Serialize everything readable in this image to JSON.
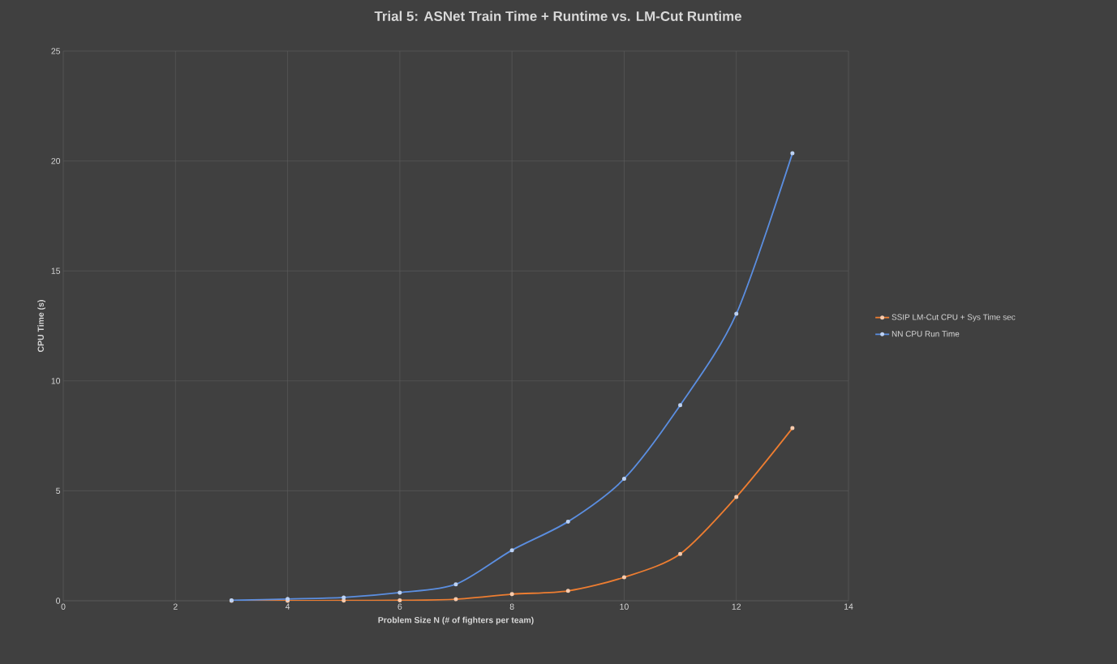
{
  "chart_data": {
    "type": "line",
    "title": "Trial 5: ASNet Train Time + Runtime vs. LM-Cut Runtime",
    "xlabel": "Problem Size N (# of fighters per team)",
    "ylabel": "CPU Time (s)",
    "x": [
      3,
      4,
      5,
      6,
      7,
      8,
      9,
      10,
      11,
      12,
      13
    ],
    "series": [
      {
        "name": "SSIP LM-Cut CPU + Sys Time sec",
        "color": "#ed7d31",
        "values": [
          0,
          0,
          0.01,
          0.02,
          0.07,
          0.3,
          0.45,
          1.07,
          2.13,
          4.72,
          7.85
        ]
      },
      {
        "name": "NN CPU Run Time",
        "color": "#5b8ee0",
        "values": [
          0.02,
          0.08,
          0.15,
          0.37,
          0.75,
          2.3,
          3.6,
          5.55,
          8.9,
          13.05,
          20.35
        ]
      }
    ],
    "xlim": [
      0,
      14
    ],
    "ylim": [
      0,
      25
    ],
    "xticks": [
      0,
      2,
      4,
      6,
      8,
      10,
      12,
      14
    ],
    "yticks": [
      0,
      5,
      10,
      15,
      20,
      25
    ],
    "grid": true,
    "legend": "right",
    "marker": "circle",
    "line_style": "solid"
  }
}
